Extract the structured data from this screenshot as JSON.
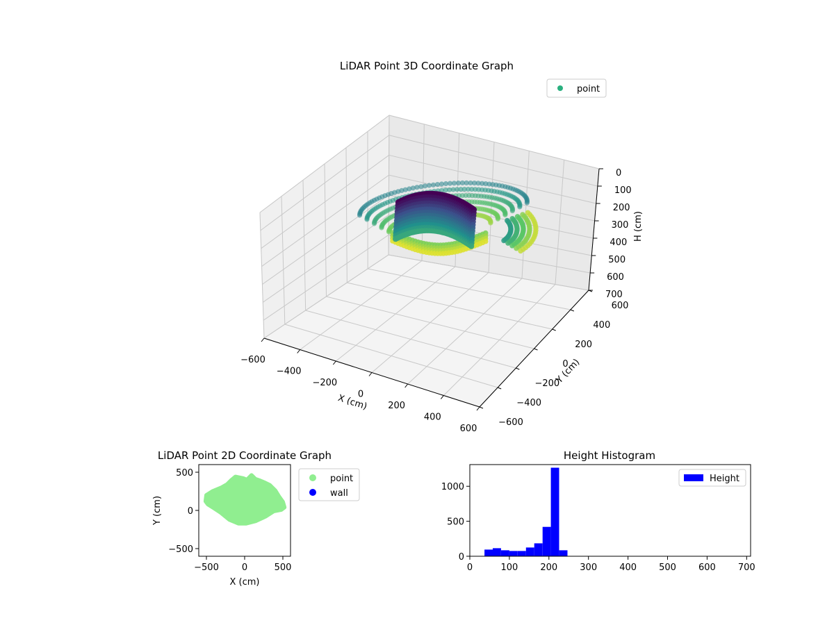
{
  "chart_data": [
    {
      "type": "scatter",
      "title": "LiDAR Point 3D Coordinate Graph",
      "projection": "3d",
      "xlabel": "X (cm)",
      "ylabel": "Y (cm)",
      "zlabel": "H (cm)",
      "xlim": [
        -600,
        600
      ],
      "ylim": [
        -600,
        600
      ],
      "zlim": [
        700,
        0
      ],
      "z_inverted": true,
      "x_ticks": [
        "−600",
        "−400",
        "−200",
        "0",
        "200",
        "400",
        "600"
      ],
      "y_ticks": [
        "−600",
        "−400",
        "−200",
        "0",
        "200",
        "400",
        "600"
      ],
      "z_ticks": [
        "0",
        "100",
        "200",
        "300",
        "400",
        "500",
        "600",
        "700"
      ],
      "grid": true,
      "legend": {
        "placement": "upper-right",
        "entries": [
          {
            "label": "point",
            "color": "#2ab07f"
          }
        ]
      },
      "colormap": "viridis",
      "series": [
        {
          "name": "point",
          "shape": "ring scan around sensor",
          "x_range": [
            -520,
            520
          ],
          "y_range": [
            -180,
            450
          ],
          "h_range": [
            40,
            250
          ],
          "dense_height": 220
        }
      ]
    },
    {
      "type": "scatter",
      "title": "LiDAR Point 2D Coordinate Graph",
      "xlabel": "X (cm)",
      "ylabel": "Y (cm)",
      "xlim": [
        -600,
        600
      ],
      "ylim": [
        -600,
        600
      ],
      "x_ticks": [
        "−500",
        "0",
        "500"
      ],
      "y_ticks": [
        "−500",
        "0",
        "500"
      ],
      "legend": {
        "placement": "outside-right",
        "entries": [
          {
            "label": "point",
            "color": "#90ee90"
          },
          {
            "label": "wall",
            "color": "#0000ff"
          }
        ]
      },
      "outline": [
        [
          -510,
          120
        ],
        [
          -500,
          200
        ],
        [
          -420,
          250
        ],
        [
          -300,
          300
        ],
        [
          -230,
          340
        ],
        [
          -180,
          390
        ],
        [
          -120,
          440
        ],
        [
          -20,
          420
        ],
        [
          30,
          400
        ],
        [
          60,
          430
        ],
        [
          90,
          460
        ],
        [
          140,
          410
        ],
        [
          200,
          390
        ],
        [
          270,
          360
        ],
        [
          330,
          330
        ],
        [
          400,
          260
        ],
        [
          450,
          180
        ],
        [
          500,
          110
        ],
        [
          520,
          40
        ],
        [
          480,
          10
        ],
        [
          380,
          -10
        ],
        [
          270,
          -80
        ],
        [
          140,
          -140
        ],
        [
          20,
          -170
        ],
        [
          -80,
          -170
        ],
        [
          -200,
          -120
        ],
        [
          -310,
          -30
        ],
        [
          -400,
          30
        ],
        [
          -480,
          80
        ]
      ]
    },
    {
      "type": "bar",
      "title": "Height Histogram",
      "xlim": [
        0,
        710
      ],
      "ylim": [
        0,
        1310
      ],
      "x_ticks": [
        "0",
        "100",
        "200",
        "300",
        "400",
        "500",
        "600",
        "700"
      ],
      "y_ticks": [
        "0",
        "500",
        "1000"
      ],
      "legend": {
        "placement": "upper-right",
        "entries": [
          {
            "label": "Height",
            "color": "#0000ff"
          }
        ]
      },
      "series": [
        {
          "name": "Height",
          "bin_edges": [
            37,
            58,
            79,
            100,
            121,
            142,
            163,
            184,
            205,
            226,
            247
          ],
          "values": [
            95,
            115,
            85,
            75,
            75,
            125,
            185,
            420,
            1265,
            85
          ]
        }
      ]
    }
  ]
}
